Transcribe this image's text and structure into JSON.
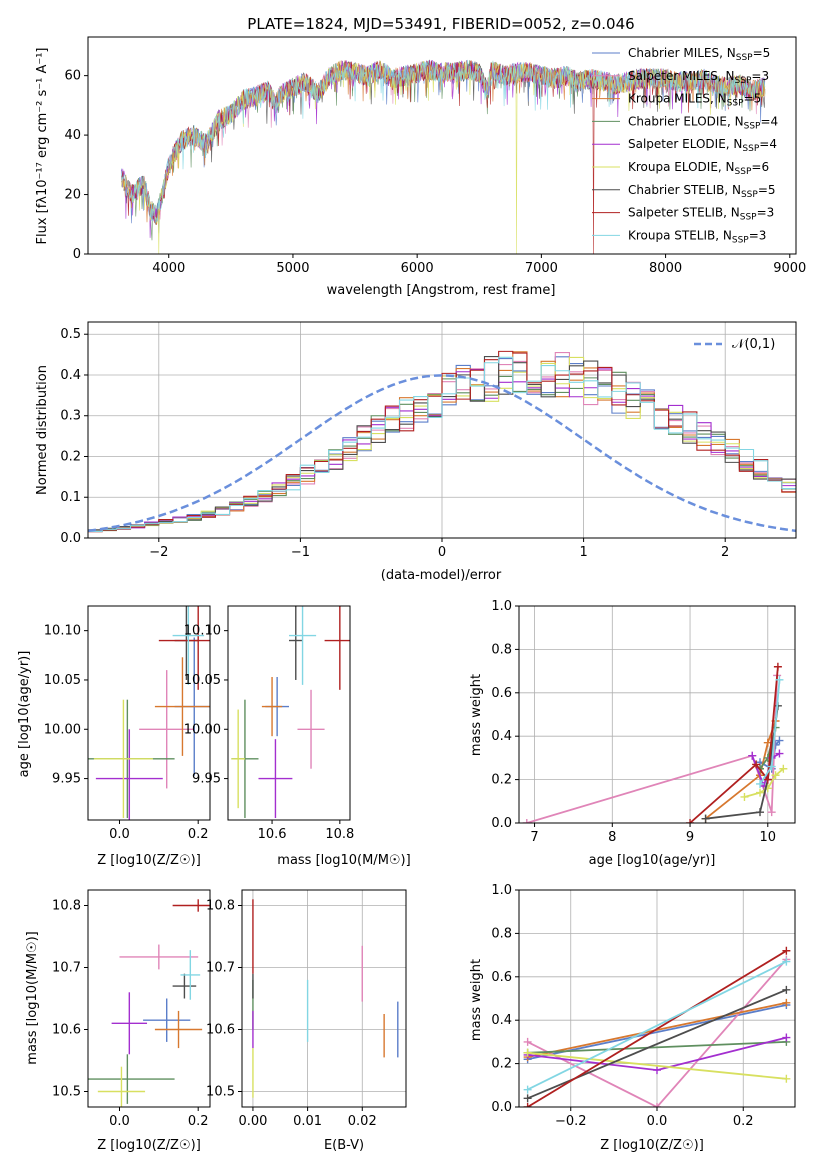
{
  "figure_title": "PLATE=1824, MJD=53491, FIBERID=0052, z=0.046",
  "colors": {
    "Chabrier MILES": "#5b7ec9",
    "Salpeter MILES": "#e085b8",
    "Kroupa MILES": "#d7782f",
    "Chabrier ELODIE": "#5f8f5f",
    "Salpeter ELODIE": "#a32fcf",
    "Kroupa ELODIE": "#d8e060",
    "Chabrier STELIB": "#4d4d4d",
    "Salpeter STELIB": "#b02020",
    "Kroupa STELIB": "#82d6e3",
    "normal": "#6a8fdc"
  },
  "chart_data": [
    {
      "id": "spectrum",
      "type": "line",
      "title": "PLATE=1824, MJD=53491, FIBERID=0052, z=0.046",
      "xlabel": "wavelength [Angstrom, rest frame]",
      "ylabel": "Flux [fλ10⁻¹⁷ erg cm⁻² s⁻¹ A⁻¹]",
      "xlim": [
        3350,
        9050
      ],
      "ylim": [
        0,
        73
      ],
      "xticks": [
        4000,
        5000,
        6000,
        7000,
        8000,
        9000
      ],
      "yticks": [
        0,
        20,
        40,
        60
      ],
      "legend_position": "top-right",
      "legend": [
        "Chabrier MILES, N_SSP=5",
        "Salpeter MILES, N_SSP=3",
        "Kroupa MILES, N_SSP=5",
        "Chabrier ELODIE, N_SSP=4",
        "Salpeter ELODIE, N_SSP=4",
        "Kroupa ELODIE, N_SSP=6",
        "Chabrier STELIB, N_SSP=5",
        "Salpeter STELIB, N_SSP=3",
        "Kroupa STELIB, N_SSP=3"
      ],
      "x": [
        3620,
        3700,
        3800,
        3850,
        3900,
        3950,
        4000,
        4100,
        4200,
        4300,
        4400,
        4500,
        4600,
        4700,
        4800,
        4860,
        4900,
        5000,
        5100,
        5200,
        5300,
        5400,
        5500,
        5600,
        5700,
        5800,
        5900,
        6000,
        6100,
        6200,
        6300,
        6400,
        6500,
        6563,
        6600,
        6700,
        6800,
        6900,
        7000,
        7100,
        7200,
        7300,
        7400,
        7500,
        7600,
        7700,
        7800,
        7900,
        8000,
        8100,
        8200,
        8300,
        8400,
        8500,
        8600,
        8700,
        8800
      ],
      "y": [
        26,
        20,
        24,
        15,
        13,
        20,
        30,
        38,
        40,
        37,
        45,
        47,
        52,
        53,
        55,
        50,
        54,
        56,
        58,
        54,
        60,
        62,
        61,
        60,
        62,
        59,
        60,
        61,
        62,
        61,
        61,
        62,
        61,
        55,
        62,
        60,
        61,
        61,
        60,
        59,
        60,
        58,
        59,
        58,
        57,
        58,
        59,
        59,
        59,
        58,
        58,
        59,
        57,
        56,
        57,
        55,
        56
      ],
      "dropouts": [
        {
          "x": 3920,
          "series": "Kroupa ELODIE"
        },
        {
          "x": 6800,
          "series": "Kroupa ELODIE"
        },
        {
          "x": 7420,
          "series": "Salpeter STELIB"
        }
      ]
    },
    {
      "id": "residual_hist",
      "type": "histogram",
      "xlabel": "(data-model)/error",
      "ylabel": "Normed distribution",
      "xlim": [
        -2.5,
        2.5
      ],
      "ylim": [
        0,
        0.53
      ],
      "xticks": [
        -2,
        -1,
        0,
        1,
        2
      ],
      "yticks": [
        0.0,
        0.1,
        0.2,
        0.3,
        0.4,
        0.5
      ],
      "grid": true,
      "legend": [
        "𝒩(0,1)"
      ],
      "legend_position": "top-right",
      "bin_width": 0.1,
      "bin_start": -2.5,
      "base_heights": [
        0.018,
        0.021,
        0.025,
        0.029,
        0.034,
        0.04,
        0.045,
        0.051,
        0.058,
        0.066,
        0.078,
        0.09,
        0.104,
        0.12,
        0.138,
        0.156,
        0.175,
        0.196,
        0.218,
        0.241,
        0.263,
        0.284,
        0.305,
        0.324,
        0.341,
        0.357,
        0.371,
        0.383,
        0.392,
        0.399,
        0.402,
        0.404,
        0.401,
        0.397,
        0.389,
        0.38,
        0.369,
        0.356,
        0.341,
        0.325,
        0.309,
        0.292,
        0.272,
        0.252,
        0.231,
        0.211,
        0.19,
        0.17,
        0.15,
        0.132
      ]
    },
    {
      "id": "age_vs_Z",
      "type": "errorbar",
      "xlabel": "Z [log10(Z/Z☉)]",
      "ylabel": "age  [log10(age/yr)]",
      "xlim": [
        -0.08,
        0.23
      ],
      "ylim": [
        9.908,
        10.125
      ],
      "xticks": [
        0.0,
        0.2
      ],
      "yticks": [
        9.95,
        10.0,
        10.05,
        10.1
      ],
      "points": [
        {
          "series": "Chabrier MILES",
          "x": 0.19,
          "y": 10.023,
          "xerr": 0.05,
          "yerr": 0.07
        },
        {
          "series": "Salpeter MILES",
          "x": 0.12,
          "y": 10.0,
          "xerr": 0.07,
          "yerr": 0.06
        },
        {
          "series": "Kroupa MILES",
          "x": 0.16,
          "y": 10.023,
          "xerr": 0.07,
          "yerr": 0.05
        },
        {
          "series": "Chabrier ELODIE",
          "x": 0.02,
          "y": 9.97,
          "xerr": 0.12,
          "yerr": 0.06
        },
        {
          "series": "Salpeter ELODIE",
          "x": 0.025,
          "y": 9.95,
          "xerr": 0.085,
          "yerr": 0.05
        },
        {
          "series": "Kroupa ELODIE",
          "x": 0.01,
          "y": 9.97,
          "xerr": 0.075,
          "yerr": 0.06
        },
        {
          "series": "Chabrier STELIB",
          "x": 0.17,
          "y": 10.09,
          "xerr": 0.03,
          "yerr": 0.04
        },
        {
          "series": "Salpeter STELIB",
          "x": 0.2,
          "y": 10.09,
          "xerr": 0.1,
          "yerr": 0.05
        },
        {
          "series": "Kroupa STELIB",
          "x": 0.175,
          "y": 10.095,
          "xerr": 0.04,
          "yerr": 0.05
        }
      ]
    },
    {
      "id": "age_vs_mass",
      "type": "errorbar",
      "xlabel": "mass [log10(M/M☉)]",
      "ylabel": "",
      "xlim": [
        10.47,
        10.83
      ],
      "ylim": [
        9.908,
        10.125
      ],
      "xticks": [
        10.6,
        10.8
      ],
      "yticks": [
        9.95,
        10.0,
        10.05,
        10.1
      ],
      "points": [
        {
          "series": "Chabrier MILES",
          "x": 10.615,
          "y": 10.023,
          "xerr": 0.035,
          "yerr": 0.03
        },
        {
          "series": "Salpeter MILES",
          "x": 10.715,
          "y": 10.0,
          "xerr": 0.04,
          "yerr": 0.04
        },
        {
          "series": "Kroupa MILES",
          "x": 10.6,
          "y": 10.023,
          "xerr": 0.03,
          "yerr": 0.03
        },
        {
          "series": "Chabrier ELODIE",
          "x": 10.52,
          "y": 9.97,
          "xerr": 0.04,
          "yerr": 0.06
        },
        {
          "series": "Salpeter ELODIE",
          "x": 10.61,
          "y": 9.95,
          "xerr": 0.05,
          "yerr": 0.04
        },
        {
          "series": "Kroupa ELODIE",
          "x": 10.5,
          "y": 9.97,
          "xerr": 0.02,
          "yerr": 0.05
        },
        {
          "series": "Chabrier STELIB",
          "x": 10.67,
          "y": 10.09,
          "xerr": 0.02,
          "yerr": 0.04
        },
        {
          "series": "Salpeter STELIB",
          "x": 10.8,
          "y": 10.09,
          "xerr": 0.045,
          "yerr": 0.05
        },
        {
          "series": "Kroupa STELIB",
          "x": 10.69,
          "y": 10.095,
          "xerr": 0.04,
          "yerr": 0.05
        }
      ]
    },
    {
      "id": "weight_vs_age",
      "type": "line",
      "xlabel": "age  [log10(age/yr)]",
      "ylabel": "mass weight",
      "xlim": [
        6.8,
        10.35
      ],
      "ylim": [
        0,
        1
      ],
      "xticks": [
        7,
        8,
        9,
        10
      ],
      "yticks": [
        0.0,
        0.2,
        0.4,
        0.6,
        0.8,
        1.0
      ],
      "grid": true,
      "series": [
        {
          "name": "Chabrier MILES",
          "x": [
            9.9,
            10.05,
            10.1,
            10.15
          ],
          "y": [
            0.28,
            0.25,
            0.36,
            0.38
          ]
        },
        {
          "name": "Salpeter MILES",
          "x": [
            6.9,
            9.8,
            10.05,
            10.12
          ],
          "y": [
            0.0,
            0.31,
            0.05,
            0.68
          ]
        },
        {
          "name": "Kroupa MILES",
          "x": [
            9.2,
            9.9,
            10.0,
            10.1
          ],
          "y": [
            0.02,
            0.22,
            0.37,
            0.47
          ]
        },
        {
          "name": "Chabrier ELODIE",
          "x": [
            9.9,
            10.0,
            10.1
          ],
          "y": [
            0.25,
            0.3,
            0.44
          ]
        },
        {
          "name": "Salpeter ELODIE",
          "x": [
            9.8,
            9.95,
            10.05,
            10.15
          ],
          "y": [
            0.31,
            0.17,
            0.3,
            0.32
          ]
        },
        {
          "name": "Kroupa ELODIE",
          "x": [
            9.7,
            9.9,
            10.0,
            10.1,
            10.2
          ],
          "y": [
            0.12,
            0.14,
            0.16,
            0.22,
            0.25
          ]
        },
        {
          "name": "Chabrier STELIB",
          "x": [
            9.2,
            9.9,
            10.0,
            10.13
          ],
          "y": [
            0.02,
            0.05,
            0.2,
            0.54
          ]
        },
        {
          "name": "Salpeter STELIB",
          "x": [
            9.0,
            9.85,
            10.0,
            10.13
          ],
          "y": [
            0.0,
            0.27,
            0.2,
            0.72
          ]
        },
        {
          "name": "Kroupa STELIB",
          "x": [
            9.9,
            10.05,
            10.15
          ],
          "y": [
            0.18,
            0.26,
            0.66
          ]
        }
      ]
    },
    {
      "id": "mass_vs_Z",
      "type": "errorbar",
      "xlabel": "Z [log10(Z/Z☉)]",
      "ylabel": "mass [log10(M/M☉)]",
      "xlim": [
        -0.08,
        0.23
      ],
      "ylim": [
        10.475,
        10.825
      ],
      "xticks": [
        0.0,
        0.2
      ],
      "yticks": [
        10.5,
        10.6,
        10.7,
        10.8
      ],
      "points": [
        {
          "series": "Chabrier MILES",
          "x": 0.12,
          "y": 10.615,
          "xerr": 0.06,
          "yerr": 0.035
        },
        {
          "series": "Salpeter MILES",
          "x": 0.1,
          "y": 10.717,
          "xerr": 0.1,
          "yerr": 0.02
        },
        {
          "series": "Kroupa MILES",
          "x": 0.15,
          "y": 10.6,
          "xerr": 0.06,
          "yerr": 0.03
        },
        {
          "series": "Chabrier ELODIE",
          "x": 0.02,
          "y": 10.52,
          "xerr": 0.12,
          "yerr": 0.04
        },
        {
          "series": "Salpeter ELODIE",
          "x": 0.025,
          "y": 10.61,
          "xerr": 0.045,
          "yerr": 0.05
        },
        {
          "series": "Kroupa ELODIE",
          "x": 0.005,
          "y": 10.5,
          "xerr": 0.06,
          "yerr": 0.04
        },
        {
          "series": "Chabrier STELIB",
          "x": 0.165,
          "y": 10.67,
          "xerr": 0.03,
          "yerr": 0.02
        },
        {
          "series": "Salpeter STELIB",
          "x": 0.2,
          "y": 10.8,
          "xerr": 0.065,
          "yerr": 0.01
        },
        {
          "series": "Kroupa STELIB",
          "x": 0.18,
          "y": 10.688,
          "xerr": 0.025,
          "yerr": 0.04
        }
      ]
    },
    {
      "id": "mass_vs_EBV",
      "type": "errorbar",
      "xlabel": "E(B-V)",
      "ylabel": "",
      "xlim": [
        -0.002,
        0.028
      ],
      "ylim": [
        10.475,
        10.825
      ],
      "xticks": [
        0.0,
        0.01,
        0.02
      ],
      "yticks": [
        10.5,
        10.6,
        10.7,
        10.8
      ],
      "grid": true,
      "points": [
        {
          "series": "Chabrier MILES",
          "x": 0.0265,
          "y": 10.6,
          "xerr": 0,
          "yerr": 0.045
        },
        {
          "series": "Salpeter MILES",
          "x": 0.02,
          "y": 10.69,
          "xerr": 0,
          "yerr": 0.045
        },
        {
          "series": "Kroupa MILES",
          "x": 0.024,
          "y": 10.59,
          "xerr": 0,
          "yerr": 0.035
        },
        {
          "series": "Chabrier ELODIE",
          "x": 0.0,
          "y": 10.64,
          "xerr": 0,
          "yerr": 0.04
        },
        {
          "series": "Salpeter ELODIE",
          "x": 0.0,
          "y": 10.6,
          "xerr": 0,
          "yerr": 0.03
        },
        {
          "series": "Kroupa ELODIE",
          "x": 0.0,
          "y": 10.53,
          "xerr": 0,
          "yerr": 0.04
        },
        {
          "series": "Chabrier STELIB",
          "x": 0.0,
          "y": 10.67,
          "xerr": 0,
          "yerr": 0.02
        },
        {
          "series": "Salpeter STELIB",
          "x": 0.0,
          "y": 10.75,
          "xerr": 0,
          "yerr": 0.06
        },
        {
          "series": "Kroupa STELIB",
          "x": 0.01,
          "y": 10.63,
          "xerr": 0,
          "yerr": 0.05
        }
      ]
    },
    {
      "id": "weight_vs_Z",
      "type": "line",
      "xlabel": "Z [log10(Z/Z☉)]",
      "ylabel": "mass weight",
      "xlim": [
        -0.32,
        0.32
      ],
      "ylim": [
        0,
        1
      ],
      "xticks": [
        -0.2,
        0.0,
        0.2
      ],
      "yticks": [
        0.0,
        0.2,
        0.4,
        0.6,
        0.8,
        1.0
      ],
      "grid": true,
      "series": [
        {
          "name": "Chabrier MILES",
          "x": [
            -0.3,
            0.3
          ],
          "y": [
            0.22,
            0.47
          ]
        },
        {
          "name": "Salpeter MILES",
          "x": [
            -0.3,
            0.0,
            0.3
          ],
          "y": [
            0.3,
            0.0,
            0.68
          ]
        },
        {
          "name": "Kroupa MILES",
          "x": [
            -0.3,
            0.3
          ],
          "y": [
            0.23,
            0.48
          ]
        },
        {
          "name": "Chabrier ELODIE",
          "x": [
            -0.3,
            0.3
          ],
          "y": [
            0.25,
            0.3
          ]
        },
        {
          "name": "Salpeter ELODIE",
          "x": [
            -0.3,
            0.0,
            0.3
          ],
          "y": [
            0.24,
            0.17,
            0.32
          ]
        },
        {
          "name": "Kroupa ELODIE",
          "x": [
            -0.3,
            0.3
          ],
          "y": [
            0.25,
            0.13
          ]
        },
        {
          "name": "Chabrier STELIB",
          "x": [
            -0.3,
            0.3
          ],
          "y": [
            0.04,
            0.54
          ]
        },
        {
          "name": "Salpeter STELIB",
          "x": [
            -0.3,
            0.3
          ],
          "y": [
            0.0,
            0.72
          ]
        },
        {
          "name": "Kroupa STELIB",
          "x": [
            -0.3,
            0.3
          ],
          "y": [
            0.08,
            0.67
          ]
        }
      ]
    }
  ]
}
